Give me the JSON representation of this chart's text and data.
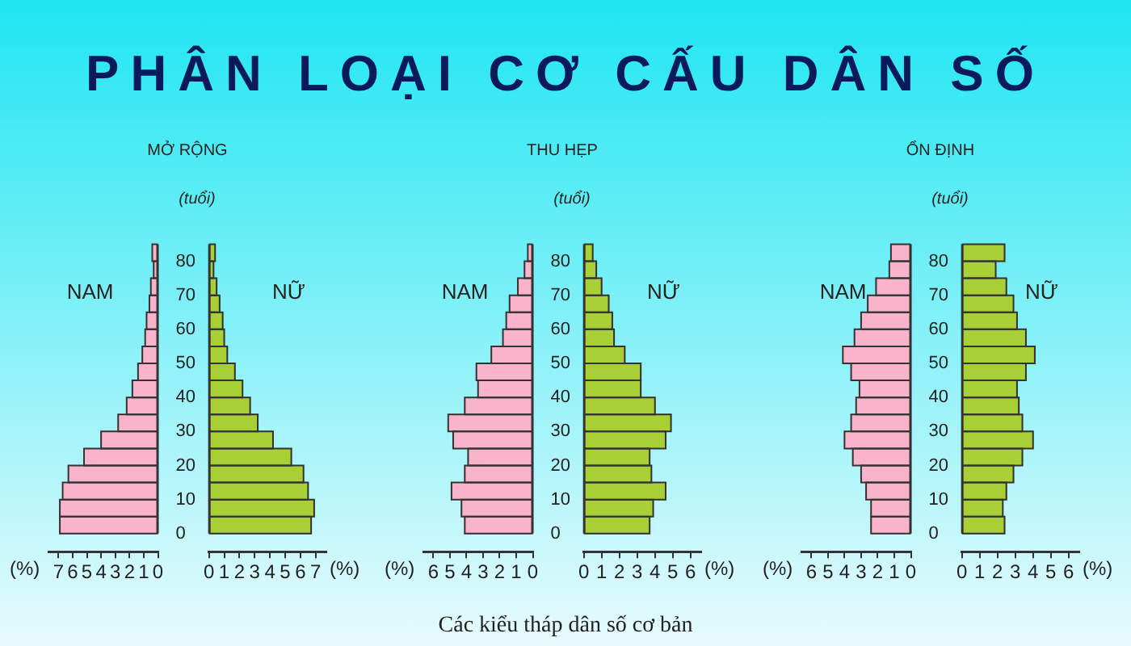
{
  "chart_data": [
    {
      "type": "histogram",
      "orientation": "horizontal",
      "title": "MỞ RỘNG",
      "ylabel": "(tuổi)",
      "xlabel": "(%)",
      "annotations": [
        "PHÂN LOẠI CƠ CẤU DÂN SỐ",
        "Các kiểu tháp dân số cơ bản"
      ],
      "bins": [
        0,
        5,
        10,
        15,
        20,
        25,
        30,
        35,
        40,
        45,
        50,
        55,
        60,
        65,
        70,
        75,
        80,
        85
      ],
      "series": [
        {
          "name": "NAM",
          "color": "#f9b4cc",
          "values": [
            6.9,
            6.9,
            6.7,
            6.3,
            5.2,
            4.0,
            2.8,
            2.2,
            1.8,
            1.4,
            1.1,
            0.9,
            0.8,
            0.6,
            0.5,
            0.3,
            0.4
          ]
        }
      ],
      "xlim": [
        7.7,
        0
      ],
      "xticks": [
        7,
        6,
        5,
        4,
        3,
        2,
        1,
        0
      ],
      "ylim": [
        0,
        85
      ],
      "yticks": [
        0,
        10,
        20,
        30,
        40,
        50,
        60,
        70,
        80
      ]
    },
    {
      "type": "histogram",
      "orientation": "horizontal",
      "xlabel": "(%)",
      "tick_labels": "x",
      "bins": [
        0,
        5,
        10,
        15,
        20,
        25,
        30,
        35,
        40,
        45,
        50,
        55,
        60,
        65,
        70,
        75,
        80,
        85
      ],
      "series": [
        {
          "name": "NỮ",
          "color": "#a8cf35",
          "values": [
            6.7,
            6.9,
            6.5,
            6.2,
            5.4,
            4.2,
            3.2,
            2.7,
            2.2,
            1.7,
            1.2,
            1.0,
            0.9,
            0.7,
            0.5,
            0.3,
            0.4
          ]
        }
      ],
      "xlim": [
        0,
        7.7
      ],
      "xticks": [
        0,
        1,
        2,
        3,
        4,
        5,
        6,
        7
      ],
      "ylim": [
        0,
        85
      ],
      "yticks": [
        0,
        10,
        20,
        30,
        40,
        50,
        60,
        70,
        80
      ]
    },
    {
      "type": "histogram",
      "orientation": "horizontal",
      "title": "THU HẸP",
      "ylabel": "(tuổi)",
      "xlabel": "(%)",
      "bins": [
        0,
        5,
        10,
        15,
        20,
        25,
        30,
        35,
        40,
        45,
        50,
        55,
        60,
        65,
        70,
        75,
        80,
        85
      ],
      "series": [
        {
          "name": "NAM",
          "color": "#f9b4cc",
          "values": [
            4.1,
            4.3,
            4.9,
            4.1,
            3.9,
            4.8,
            5.1,
            4.1,
            3.3,
            3.4,
            2.5,
            1.8,
            1.6,
            1.4,
            0.9,
            0.5,
            0.3
          ]
        }
      ],
      "xlim": [
        6.6,
        0
      ],
      "xticks": [
        6,
        5,
        4,
        3,
        2,
        1,
        0
      ],
      "ylim": [
        0,
        85
      ],
      "yticks": [
        0,
        10,
        20,
        30,
        40,
        50,
        60,
        70,
        80
      ]
    },
    {
      "type": "histogram",
      "orientation": "horizontal",
      "xlabel": "(%)",
      "tick_labels": "x",
      "bins": [
        0,
        5,
        10,
        15,
        20,
        25,
        30,
        35,
        40,
        45,
        50,
        55,
        60,
        65,
        70,
        75,
        80,
        85
      ],
      "series": [
        {
          "name": "NỮ",
          "color": "#a8cf35",
          "values": [
            3.7,
            3.9,
            4.6,
            3.8,
            3.7,
            4.6,
            4.9,
            4.0,
            3.2,
            3.2,
            2.3,
            1.7,
            1.6,
            1.4,
            1.0,
            0.7,
            0.5
          ]
        }
      ],
      "xlim": [
        0,
        6.6
      ],
      "xticks": [
        0,
        1,
        2,
        3,
        4,
        5,
        6
      ],
      "ylim": [
        0,
        85
      ],
      "yticks": [
        0,
        10,
        20,
        30,
        40,
        50,
        60,
        70,
        80
      ]
    },
    {
      "type": "histogram",
      "orientation": "horizontal",
      "title": "ỔN ĐỊNH",
      "ylabel": "(tuổi)",
      "xlabel": "(%)",
      "bins": [
        0,
        5,
        10,
        15,
        20,
        25,
        30,
        35,
        40,
        45,
        50,
        55,
        60,
        65,
        70,
        75,
        80,
        85
      ],
      "series": [
        {
          "name": "NAM",
          "color": "#f9b4cc",
          "values": [
            2.4,
            2.4,
            2.7,
            3.0,
            3.5,
            4.0,
            3.6,
            3.3,
            3.1,
            3.6,
            4.1,
            3.4,
            3.0,
            2.6,
            2.1,
            1.3,
            1.2
          ]
        }
      ],
      "xlim": [
        6.6,
        0
      ],
      "xticks": [
        6,
        5,
        4,
        3,
        2,
        1,
        0
      ],
      "ylim": [
        0,
        85
      ],
      "yticks": [
        0,
        10,
        20,
        30,
        40,
        50,
        60,
        70,
        80
      ]
    },
    {
      "type": "histogram",
      "orientation": "horizontal",
      "xlabel": "(%)",
      "tick_labels": "x",
      "bins": [
        0,
        5,
        10,
        15,
        20,
        25,
        30,
        35,
        40,
        45,
        50,
        55,
        60,
        65,
        70,
        75,
        80,
        85
      ],
      "series": [
        {
          "name": "NỮ",
          "color": "#a8cf35",
          "values": [
            2.4,
            2.3,
            2.5,
            2.9,
            3.4,
            4.0,
            3.4,
            3.2,
            3.1,
            3.6,
            4.1,
            3.6,
            3.1,
            2.9,
            2.5,
            1.9,
            2.4
          ]
        }
      ],
      "xlim": [
        0,
        6.6
      ],
      "xticks": [
        0,
        1,
        2,
        3,
        4,
        5,
        6
      ],
      "ylim": [
        0,
        85
      ],
      "yticks": [
        0,
        10,
        20,
        30,
        40,
        50,
        60,
        70,
        80
      ]
    }
  ]
}
